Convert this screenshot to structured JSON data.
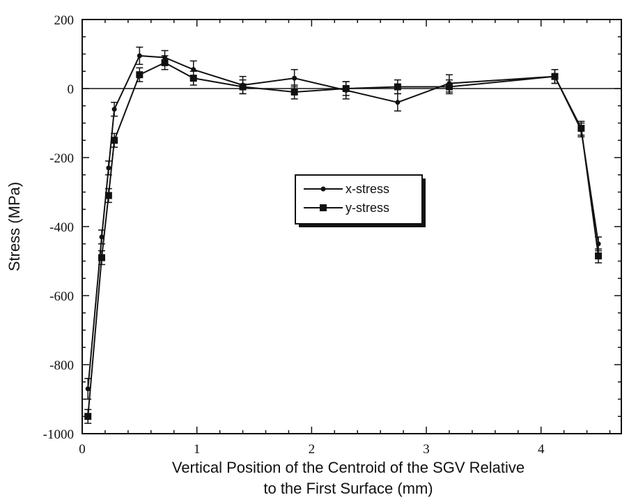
{
  "chart_data": {
    "type": "line",
    "xlabel": [
      "Vertical Position of the Centroid of the SGV Relative",
      "to the First Surface (mm)"
    ],
    "ylabel": "Stress (MPa)",
    "xlim": [
      0,
      4.7
    ],
    "ylim": [
      -1000,
      200
    ],
    "x_ticks": [
      0,
      1,
      2,
      3,
      4
    ],
    "y_ticks": [
      200,
      0,
      -200,
      -400,
      -600,
      -800,
      -1000
    ],
    "zero_line": 0,
    "grid": false,
    "legend_position": "center",
    "series": [
      {
        "name": "x-stress",
        "marker": "circle",
        "x": [
          0.05,
          0.17,
          0.23,
          0.28,
          0.5,
          0.72,
          0.97,
          1.4,
          1.85,
          2.3,
          2.75,
          3.2,
          4.12,
          4.35,
          4.5
        ],
        "y": [
          -870,
          -430,
          -230,
          -60,
          95,
          90,
          55,
          10,
          30,
          -5,
          -40,
          15,
          35,
          -120,
          -450
        ],
        "error": [
          30,
          20,
          20,
          20,
          25,
          20,
          25,
          25,
          25,
          25,
          25,
          25,
          20,
          20,
          20
        ]
      },
      {
        "name": "y-stress",
        "marker": "square",
        "x": [
          0.05,
          0.17,
          0.23,
          0.28,
          0.5,
          0.72,
          0.97,
          1.4,
          1.85,
          2.3,
          2.75,
          3.2,
          4.12,
          4.35,
          4.5
        ],
        "y": [
          -950,
          -490,
          -310,
          -150,
          40,
          75,
          30,
          5,
          -10,
          0,
          5,
          5,
          35,
          -115,
          -485
        ],
        "error": [
          20,
          20,
          20,
          20,
          20,
          20,
          20,
          20,
          20,
          20,
          20,
          20,
          20,
          20,
          20
        ]
      }
    ]
  }
}
